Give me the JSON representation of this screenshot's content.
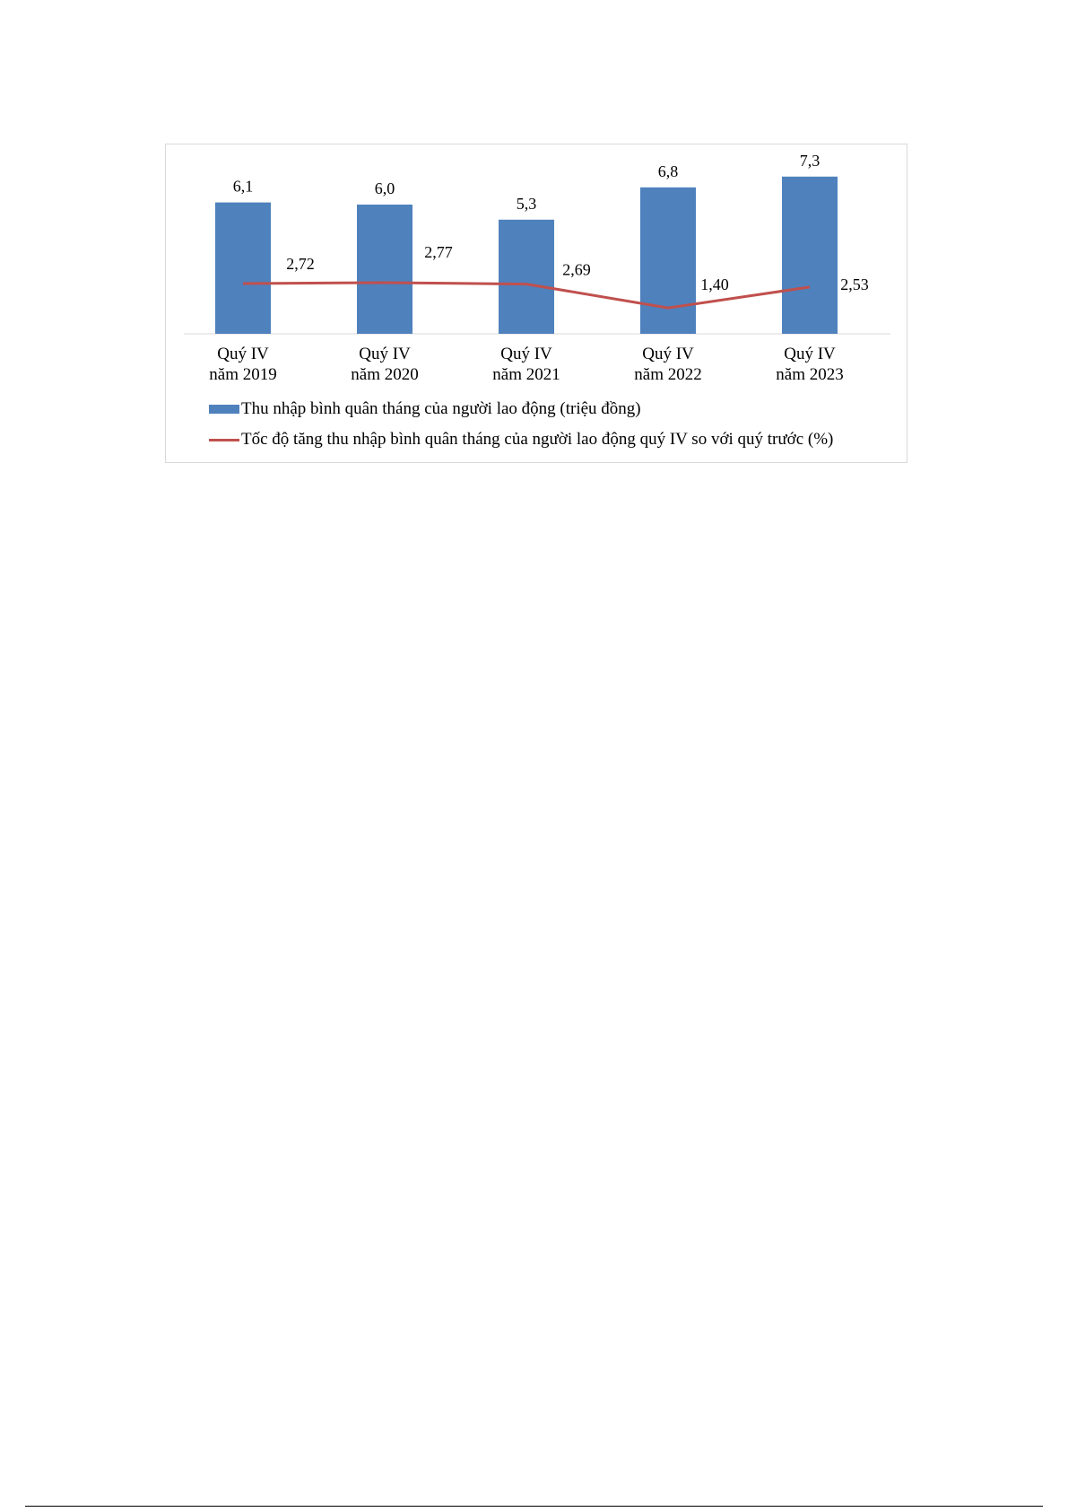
{
  "chart_data": {
    "type": "bar",
    "categories": [
      [
        "Quý IV",
        "năm 2019"
      ],
      [
        "Quý IV",
        "năm 2020"
      ],
      [
        "Quý IV",
        "năm 2021"
      ],
      [
        "Quý IV",
        "năm 2022"
      ],
      [
        "Quý IV",
        "năm 2023"
      ]
    ],
    "bar_series": {
      "name": "Thu nhập bình quân tháng của người lao động (triệu đồng)",
      "values": [
        6.1,
        6.0,
        5.3,
        6.8,
        7.3
      ],
      "labels": [
        "6,1",
        "6,0",
        "5,3",
        "6,8",
        "7,3"
      ],
      "color": "#4f81bd"
    },
    "line_series": {
      "name": "Tốc độ tăng thu nhập bình quân tháng của người lao động quý IV so với quý trước (%)",
      "values": [
        2.72,
        2.77,
        2.69,
        1.4,
        2.53
      ],
      "labels": [
        "2,72",
        "2,77",
        "2,69",
        "1,40",
        "2,53"
      ],
      "color": "#c0504d"
    },
    "grid": false,
    "legend_position": "bottom"
  }
}
